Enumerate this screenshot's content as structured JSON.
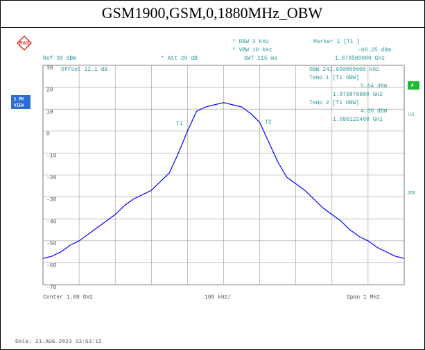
{
  "header": {
    "title": "GSM1900,GSM,0,1880MHz_OBW"
  },
  "chart_data": {
    "type": "line",
    "x": [
      -500,
      -475,
      -450,
      -425,
      -400,
      -375,
      -350,
      -325,
      -300,
      -275,
      -250,
      -225,
      -200,
      -175,
      -150,
      -125,
      -100,
      -75,
      -50,
      -25,
      0,
      25,
      50,
      75,
      100,
      125,
      150,
      175,
      200,
      225,
      250,
      275,
      300,
      325,
      350,
      375,
      400,
      425,
      450,
      475,
      500
    ],
    "series": [
      {
        "color": "#0000ff",
        "values": [
          -58,
          -57,
          -55,
          -52,
          -50,
          -47,
          -44,
          -41,
          -38,
          -34,
          -31,
          -29,
          -27,
          -23,
          -19,
          -10,
          0,
          9,
          11,
          12,
          13,
          12,
          11,
          8,
          4,
          -5,
          -14,
          -21,
          -24,
          -27,
          -31,
          -35,
          -38,
          -41,
          -45,
          -48,
          -50,
          -53,
          -55,
          -57,
          -58
        ]
      }
    ],
    "xlim": [
      -500,
      500
    ],
    "xticks": [
      -400,
      -300,
      -200,
      -100,
      0,
      100,
      200,
      300,
      400
    ],
    "ylim": [
      -70,
      30
    ],
    "yticks": [
      -70,
      -60,
      -50,
      -40,
      -30,
      -20,
      -10,
      0,
      10,
      20,
      30
    ],
    "grid": true,
    "annotations": [
      "* RBW 3 kHz",
      "* VBW 10 kHz",
      "SWT 115 ms",
      "Ref 30 dBm",
      "* Att 20 dB",
      "Marker 1 [T1 ]",
      "-60.25 dBm",
      "1.879500000 GHz",
      "Offset 12.1 dB",
      "OBW 243.600000000 kHz",
      "Temp 1 [T1 OBW]",
      "5.64 dBm",
      "1.879878800 GHz",
      "Temp 2 [T1 OBW]",
      "4.88 dBm",
      "1.880122400 GHz",
      "T1",
      "T2",
      "Center 1.88 GHz",
      "100 kHz/",
      "Span 1 MHz",
      "Date: 21.AUG.2023 13:53:12",
      "1 PK",
      "VIEW",
      "A",
      "LVL",
      "3DB"
    ]
  }
}
